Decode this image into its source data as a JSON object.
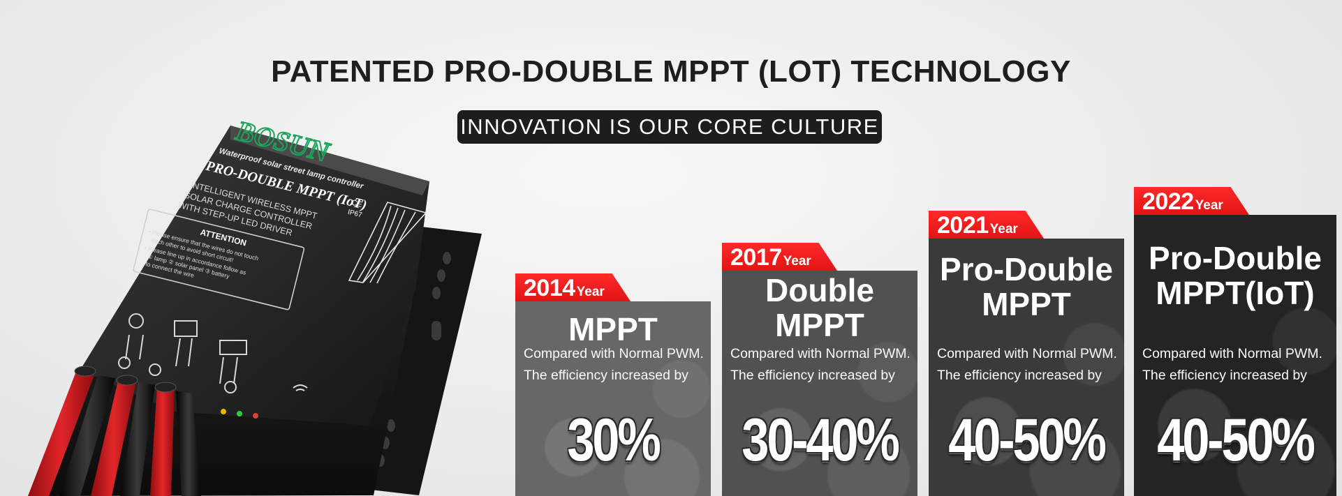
{
  "header": {
    "title": "PATENTED PRO-DOUBLE MPPT (LOT) TECHNOLOGY",
    "subtitle": "INNOVATION IS OUR CORE CULTURE"
  },
  "product": {
    "brand": "BOSUN",
    "tagline": "Waterproof solar street lamp controller",
    "model": "PRO-DOUBLE MPPT (IoT)",
    "certs": [
      "CE",
      "IP67"
    ],
    "description": [
      "INTELLIGENT WIRELESS MPPT",
      "SOLAR CHARGE CONTROLLER",
      "WITH STEP-UP LED DRIVER"
    ],
    "attention_title": "ATTENTION",
    "attention_lines": [
      "• Please ensure that the wires do not touch",
      "each other to avoid short circuit!",
      "• Please line up in accordance follow as",
      "① lamp ② solar panel ③ battery",
      "to connect the wire"
    ]
  },
  "timeline": [
    {
      "year": "2014",
      "year_suffix": "Year",
      "title": "MPPT",
      "desc": "Compared with Normal PWM.\nThe efficiency increased by",
      "percent": "30%"
    },
    {
      "year": "2017",
      "year_suffix": "Year",
      "title": "Double\nMPPT",
      "desc": "Compared with Normal PWM.\nThe efficiency increased by",
      "percent": "30-40%"
    },
    {
      "year": "2021",
      "year_suffix": "Year",
      "title": "Pro-Double\nMPPT",
      "desc": "Compared with Normal PWM.\nThe efficiency increased by",
      "percent": "40-50%"
    },
    {
      "year": "2022",
      "year_suffix": "Year",
      "title": "Pro-Double\nMPPT(IoT)",
      "desc": "Compared with Normal PWM.\nThe efficiency increased by",
      "percent": "40-50%"
    }
  ],
  "colors": {
    "accent_red": "#e8161b",
    "card_1": "#6a6a6a",
    "card_2": "#555555",
    "card_3": "#3c3c3c",
    "card_4": "#262626",
    "title_dark": "#1e1e1e"
  }
}
